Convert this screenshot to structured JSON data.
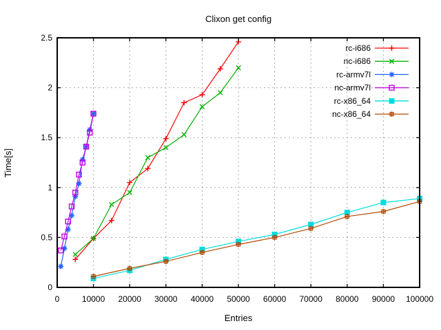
{
  "chart_data": {
    "type": "line",
    "title": "Clixon get config",
    "xlabel": "Entries",
    "ylabel": "Time[s]",
    "xlim": [
      0,
      100000
    ],
    "ylim": [
      0,
      2.5
    ],
    "xticks": [
      0,
      10000,
      20000,
      30000,
      40000,
      50000,
      60000,
      70000,
      80000,
      90000,
      100000
    ],
    "yticks": [
      0,
      0.5,
      1,
      1.5,
      2,
      2.5
    ],
    "grid": true,
    "grid_color": "#a8a8a8",
    "border_color": "#000000",
    "legend_position": "top-right-inside",
    "series": [
      {
        "name": "rc-i686",
        "color": "#ff0000",
        "marker": "plus",
        "x": [
          5000,
          10000,
          15000,
          20000,
          25000,
          30000,
          35000,
          40000,
          45000,
          50000
        ],
        "y": [
          0.28,
          0.49,
          0.67,
          1.05,
          1.19,
          1.49,
          1.85,
          1.93,
          2.19,
          2.46
        ]
      },
      {
        "name": "nc-i686",
        "color": "#00b000",
        "marker": "cross",
        "x": [
          5000,
          10000,
          15000,
          20000,
          25000,
          30000,
          35000,
          40000,
          45000,
          50000
        ],
        "y": [
          0.33,
          0.49,
          0.83,
          0.95,
          1.3,
          1.4,
          1.53,
          1.81,
          1.95,
          2.2
        ]
      },
      {
        "name": "rc-armv7l",
        "color": "#2060ff",
        "marker": "asterisk",
        "x": [
          1000,
          2000,
          3000,
          4000,
          5000,
          6000,
          7000,
          8000,
          9000,
          10000
        ],
        "y": [
          0.21,
          0.39,
          0.58,
          0.72,
          0.91,
          1.04,
          1.28,
          1.41,
          1.58,
          1.74
        ]
      },
      {
        "name": "nc-armv7l",
        "color": "#c000e0",
        "marker": "open-square",
        "x": [
          1000,
          2000,
          3000,
          4000,
          5000,
          6000,
          7000,
          8000,
          9000,
          10000
        ],
        "y": [
          0.37,
          0.51,
          0.66,
          0.81,
          0.95,
          1.13,
          1.25,
          1.41,
          1.55,
          1.74
        ]
      },
      {
        "name": "rc-x86_64",
        "color": "#00dcdc",
        "marker": "filled-square",
        "x": [
          10000,
          20000,
          30000,
          40000,
          50000,
          60000,
          70000,
          80000,
          90000,
          100000
        ],
        "y": [
          0.09,
          0.17,
          0.28,
          0.38,
          0.46,
          0.53,
          0.63,
          0.75,
          0.85,
          0.89
        ]
      },
      {
        "name": "nc-x86_64",
        "color": "#b34700",
        "marker": "boxed-plus",
        "x": [
          10000,
          20000,
          30000,
          40000,
          50000,
          60000,
          70000,
          80000,
          90000,
          100000
        ],
        "y": [
          0.11,
          0.19,
          0.26,
          0.35,
          0.43,
          0.5,
          0.59,
          0.71,
          0.76,
          0.86
        ]
      }
    ]
  }
}
